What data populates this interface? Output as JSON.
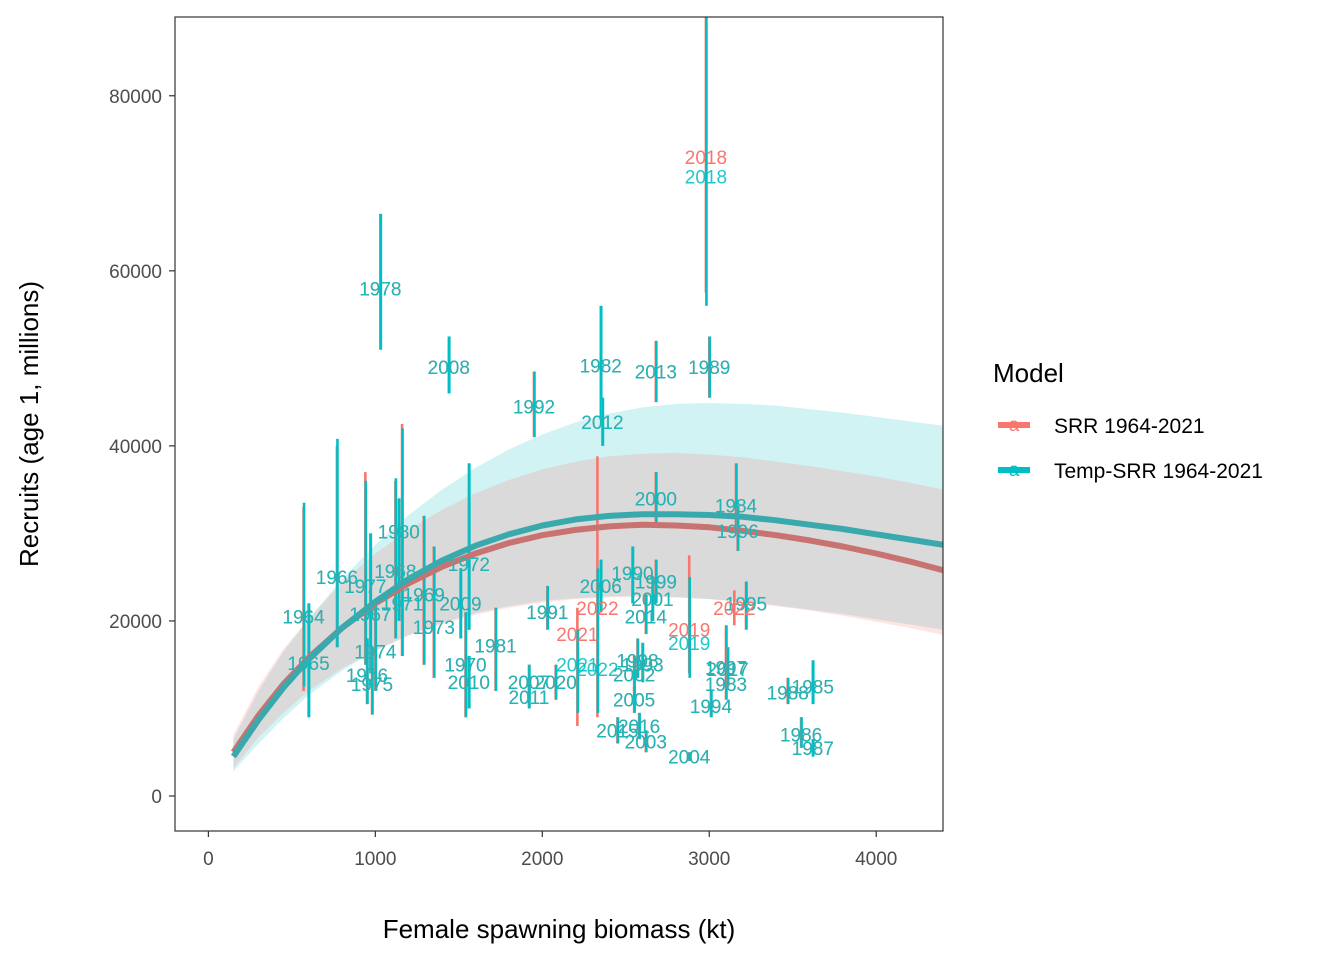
{
  "chart_data": {
    "type": "scatter",
    "title": "",
    "xlabel": "Female spawning biomass (kt)",
    "ylabel": "Recruits (age 1, millions)",
    "xlim": [
      -200,
      4400
    ],
    "ylim": [
      -4000,
      89000
    ],
    "x_ticks": [
      0,
      1000,
      2000,
      3000,
      4000
    ],
    "x_tick_labels": [
      "0",
      "1000",
      "2000",
      "3000",
      "4000"
    ],
    "y_ticks": [
      0,
      20000,
      40000,
      60000,
      80000
    ],
    "y_tick_labels": [
      "0",
      "20000",
      "40000",
      "60000",
      "80000"
    ],
    "grid": false,
    "legend": {
      "title": "Model",
      "placement": "right",
      "entries": [
        {
          "label": "SRR 1964-2021",
          "color": "#F8766D"
        },
        {
          "label": "Temp-SRR 1964-2021",
          "color": "#00BFC4"
        }
      ]
    },
    "colors": {
      "srr": "#F8766D",
      "temp": "#00BFC4",
      "srr_line": "#C87371",
      "temp_line": "#3AA9AD",
      "srr_band": "#F8766D",
      "temp_band": "#00BFC4"
    },
    "curves": {
      "x": [
        150,
        300,
        450,
        600,
        800,
        1000,
        1200,
        1400,
        1600,
        1800,
        2000,
        2200,
        2400,
        2600,
        2800,
        3000,
        3200,
        3400,
        3600,
        3800,
        4000,
        4200,
        4400
      ],
      "srr": {
        "name": "SRR 1964-2021",
        "fit": [
          5000,
          9200,
          12800,
          15800,
          19200,
          22000,
          24300,
          26200,
          27700,
          28900,
          29800,
          30400,
          30800,
          31000,
          30900,
          30700,
          30300,
          29800,
          29200,
          28500,
          27700,
          26800,
          25800
        ],
        "lower": [
          3200,
          6700,
          9500,
          12000,
          14600,
          16600,
          18300,
          19600,
          20700,
          21500,
          22100,
          22500,
          22700,
          22800,
          22700,
          22500,
          22200,
          21700,
          21200,
          20600,
          19900,
          19200,
          18400
        ],
        "upper": [
          7000,
          12500,
          16800,
          20200,
          24400,
          27700,
          30400,
          32700,
          34600,
          36100,
          37300,
          38200,
          38800,
          39100,
          39200,
          39000,
          38700,
          38200,
          37700,
          37100,
          36500,
          35800,
          35000
        ]
      },
      "temp": {
        "name": "Temp-SRR 1964-2021",
        "fit": [
          4500,
          8700,
          12400,
          15600,
          19200,
          22200,
          24800,
          26900,
          28600,
          29900,
          30900,
          31600,
          32000,
          32200,
          32200,
          32100,
          31900,
          31500,
          31000,
          30500,
          29900,
          29300,
          28700
        ],
        "lower": [
          2800,
          6000,
          8900,
          11500,
          14300,
          16600,
          18400,
          19800,
          20900,
          21700,
          22300,
          22600,
          22800,
          22800,
          22700,
          22500,
          22200,
          21800,
          21300,
          20800,
          20200,
          19600,
          19000
        ],
        "upper": [
          6500,
          12000,
          16500,
          20200,
          24800,
          28700,
          32100,
          35000,
          37500,
          39600,
          41300,
          42700,
          43700,
          44400,
          44800,
          44900,
          44800,
          44600,
          44200,
          43800,
          43300,
          42800,
          42300
        ]
      }
    },
    "points": [
      {
        "year": "1964",
        "x": 570,
        "y": 20500,
        "srr_lo": 12000,
        "srr_hi": 33000,
        "temp_lo": 12500,
        "temp_hi": 33500
      },
      {
        "year": "1965",
        "x": 600,
        "y": 15200,
        "srr_lo": 9000,
        "srr_hi": 22000,
        "temp_lo": 9000,
        "temp_hi": 22000
      },
      {
        "year": "1966",
        "x": 770,
        "y": 25000,
        "srr_lo": 17000,
        "srr_hi": 40000,
        "temp_lo": 17000,
        "temp_hi": 40800
      },
      {
        "year": "1967",
        "x": 970,
        "y": 20800,
        "srr_lo": 14000,
        "srr_hi": 30000,
        "temp_lo": 14000,
        "temp_hi": 30000
      },
      {
        "year": "1968",
        "x": 1120,
        "y": 25700,
        "srr_lo": 18000,
        "srr_hi": 36000,
        "temp_lo": 18000,
        "temp_hi": 36300
      },
      {
        "year": "1969",
        "x": 1290,
        "y": 23000,
        "srr_lo": 15000,
        "srr_hi": 32000,
        "temp_lo": 15000,
        "temp_hi": 32000
      },
      {
        "year": "1970",
        "x": 1540,
        "y": 15000,
        "srr_lo": 9000,
        "srr_hi": 21000,
        "temp_lo": 9000,
        "temp_hi": 21000
      },
      {
        "year": "1971",
        "x": 1160,
        "y": 22000,
        "srr_lo": 16000,
        "srr_hi": 42500,
        "temp_lo": 16000,
        "temp_hi": 42000
      },
      {
        "year": "1972",
        "x": 1560,
        "y": 26500,
        "srr_lo": 19000,
        "srr_hi": 38000,
        "temp_lo": 19000,
        "temp_hi": 38000
      },
      {
        "year": "1973",
        "x": 1350,
        "y": 19300,
        "srr_lo": 13500,
        "srr_hi": 28500,
        "temp_lo": 13500,
        "temp_hi": 28500
      },
      {
        "year": "1974",
        "x": 1000,
        "y": 16500,
        "srr_lo": 12000,
        "srr_hi": 22000,
        "temp_lo": 12000,
        "temp_hi": 22000
      },
      {
        "year": "1975",
        "x": 980,
        "y": 12800,
        "srr_lo": 9300,
        "srr_hi": 17000,
        "temp_lo": 9300,
        "temp_hi": 17000
      },
      {
        "year": "1976",
        "x": 950,
        "y": 13800,
        "srr_lo": 10500,
        "srr_hi": 18000,
        "temp_lo": 10500,
        "temp_hi": 18000
      },
      {
        "year": "1977",
        "x": 940,
        "y": 24000,
        "srr_lo": 15000,
        "srr_hi": 37000,
        "temp_lo": 15000,
        "temp_hi": 36000
      },
      {
        "year": "1978",
        "x": 1030,
        "y": 58000,
        "srr_lo": 51000,
        "srr_hi": 66500,
        "temp_lo": 51000,
        "temp_hi": 66500
      },
      {
        "year": "1980",
        "x": 1140,
        "y": 30200,
        "srr_lo": 20000,
        "srr_hi": 34000,
        "temp_lo": 20000,
        "temp_hi": 34000
      },
      {
        "year": "1981",
        "x": 1720,
        "y": 17200,
        "srr_lo": 12000,
        "srr_hi": 21500,
        "temp_lo": 12000,
        "temp_hi": 21500
      },
      {
        "year": "1982",
        "x": 2350,
        "y": 49200,
        "srr_lo": 43000,
        "srr_hi": 56000,
        "temp_lo": 43000,
        "temp_hi": 56000
      },
      {
        "year": "1983",
        "x": 3100,
        "y": 12800,
        "srr_lo": 11000,
        "srr_hi": 15000,
        "temp_lo": 11000,
        "temp_hi": 15000
      },
      {
        "year": "1984",
        "x": 3160,
        "y": 33200,
        "srr_lo": 30000,
        "srr_hi": 38000,
        "temp_lo": 30000,
        "temp_hi": 38000
      },
      {
        "year": "1985",
        "x": 3620,
        "y": 12500,
        "srr_lo": 10500,
        "srr_hi": 15500,
        "temp_lo": 10500,
        "temp_hi": 15500
      },
      {
        "year": "1986",
        "x": 3550,
        "y": 7000,
        "srr_lo": 5500,
        "srr_hi": 9000,
        "temp_lo": 5500,
        "temp_hi": 9000
      },
      {
        "year": "1987",
        "x": 3620,
        "y": 5500,
        "srr_lo": 4500,
        "srr_hi": 6500,
        "temp_lo": 4500,
        "temp_hi": 6500
      },
      {
        "year": "1988",
        "x": 3470,
        "y": 11800,
        "srr_lo": 10500,
        "srr_hi": 13500,
        "temp_lo": 10500,
        "temp_hi": 13500
      },
      {
        "year": "1989",
        "x": 3000,
        "y": 49000,
        "srr_lo": 45500,
        "srr_hi": 52500,
        "temp_lo": 45500,
        "temp_hi": 52500
      },
      {
        "year": "1990",
        "x": 2540,
        "y": 25500,
        "srr_lo": 22000,
        "srr_hi": 28500,
        "temp_lo": 22000,
        "temp_hi": 28500
      },
      {
        "year": "1991",
        "x": 2030,
        "y": 21000,
        "srr_lo": 19000,
        "srr_hi": 24000,
        "temp_lo": 19000,
        "temp_hi": 24000
      },
      {
        "year": "1992",
        "x": 1950,
        "y": 44500,
        "srr_lo": 41000,
        "srr_hi": 48500,
        "temp_lo": 41000,
        "temp_hi": 48500
      },
      {
        "year": "1993",
        "x": 2600,
        "y": 15000,
        "srr_lo": 13000,
        "srr_hi": 17500,
        "temp_lo": 13000,
        "temp_hi": 17500
      },
      {
        "year": "1994",
        "x": 3010,
        "y": 10300,
        "srr_lo": 9000,
        "srr_hi": 12000,
        "temp_lo": 9000,
        "temp_hi": 12000
      },
      {
        "year": "1995",
        "x": 3220,
        "y": 22000,
        "srr_lo": 19000,
        "srr_hi": 24500,
        "temp_lo": 19000,
        "temp_hi": 24500
      },
      {
        "year": "1996",
        "x": 3170,
        "y": 30300,
        "srr_lo": 28000,
        "srr_hi": 33000,
        "temp_lo": 28000,
        "temp_hi": 33000
      },
      {
        "year": "1997",
        "x": 3100,
        "y": 14700,
        "srr_lo": 12500,
        "srr_hi": 19500,
        "temp_lo": 12500,
        "temp_hi": 19500
      },
      {
        "year": "1998",
        "x": 2570,
        "y": 15500,
        "srr_lo": 13500,
        "srr_hi": 18000,
        "temp_lo": 13500,
        "temp_hi": 18000
      },
      {
        "year": "1999",
        "x": 2680,
        "y": 24500,
        "srr_lo": 22000,
        "srr_hi": 27000,
        "temp_lo": 22000,
        "temp_hi": 27000
      },
      {
        "year": "2000",
        "x": 2680,
        "y": 34000,
        "srr_lo": 31000,
        "srr_hi": 37000,
        "temp_lo": 31000,
        "temp_hi": 37000
      },
      {
        "year": "2001",
        "x": 2660,
        "y": 22500,
        "srr_lo": 20000,
        "srr_hi": 25000,
        "temp_lo": 20000,
        "temp_hi": 25000
      },
      {
        "year": "2002",
        "x": 2550,
        "y": 13900,
        "srr_lo": 12000,
        "srr_hi": 16000,
        "temp_lo": 12000,
        "temp_hi": 16000
      },
      {
        "year": "2003",
        "x": 2620,
        "y": 6200,
        "srr_lo": 5000,
        "srr_hi": 7500,
        "temp_lo": 5000,
        "temp_hi": 7500
      },
      {
        "year": "2004",
        "x": 2880,
        "y": 4500,
        "srr_lo": 4000,
        "srr_hi": 5000,
        "temp_lo": 4000,
        "temp_hi": 5000
      },
      {
        "year": "2005",
        "x": 2550,
        "y": 11000,
        "srr_lo": 9500,
        "srr_hi": 12500,
        "temp_lo": 9500,
        "temp_hi": 12500
      },
      {
        "year": "2006",
        "x": 2350,
        "y": 24000,
        "srr_lo": 21000,
        "srr_hi": 27000,
        "temp_lo": 21000,
        "temp_hi": 27000
      },
      {
        "year": "2007",
        "x": 1920,
        "y": 13000,
        "srr_lo": 11000,
        "srr_hi": 15000,
        "temp_lo": 11000,
        "temp_hi": 15000
      },
      {
        "year": "2008",
        "x": 1440,
        "y": 49000,
        "srr_lo": 46000,
        "srr_hi": 52500,
        "temp_lo": 46000,
        "temp_hi": 52500
      },
      {
        "year": "2009",
        "x": 1510,
        "y": 22000,
        "srr_lo": 18000,
        "srr_hi": 26000,
        "temp_lo": 18000,
        "temp_hi": 26000
      },
      {
        "year": "2010",
        "x": 1560,
        "y": 13000,
        "srr_lo": 10000,
        "srr_hi": 16000,
        "temp_lo": 10000,
        "temp_hi": 16000
      },
      {
        "year": "2011",
        "x": 1920,
        "y": 11300,
        "srr_lo": 10000,
        "srr_hi": 13000,
        "temp_lo": 10000,
        "temp_hi": 13000
      },
      {
        "year": "2012",
        "x": 2360,
        "y": 42700,
        "srr_lo": 40000,
        "srr_hi": 45500,
        "temp_lo": 40000,
        "temp_hi": 45500
      },
      {
        "year": "2013",
        "x": 2680,
        "y": 48500,
        "srr_lo": 45000,
        "srr_hi": 52000,
        "temp_lo": 45000,
        "temp_hi": 52000
      },
      {
        "year": "2014",
        "x": 2620,
        "y": 20500,
        "srr_lo": 18500,
        "srr_hi": 23000,
        "temp_lo": 18500,
        "temp_hi": 23000
      },
      {
        "year": "2015",
        "x": 2450,
        "y": 7500,
        "srr_lo": 6000,
        "srr_hi": 9000,
        "temp_lo": 6000,
        "temp_hi": 9000
      },
      {
        "year": "2016",
        "x": 2580,
        "y": 8000,
        "srr_lo": 6500,
        "srr_hi": 9500,
        "temp_lo": 6500,
        "temp_hi": 9500
      },
      {
        "year": "2017",
        "x": 3110,
        "y": 14500,
        "srr_lo": 12500,
        "srr_hi": 17000,
        "temp_lo": 12500,
        "temp_hi": 17000
      },
      {
        "year": "2018",
        "x": 2980,
        "srr_y": 73000,
        "temp_y": 70800,
        "srr_lo": 57500,
        "srr_hi": 89000,
        "temp_lo": 56000,
        "temp_hi": 89000
      },
      {
        "year": "2019",
        "x": 2880,
        "srr_y": 19000,
        "temp_y": 17500,
        "srr_lo": 14000,
        "srr_hi": 27500,
        "temp_lo": 13500,
        "temp_hi": 25000
      },
      {
        "year": "2020",
        "x": 2080,
        "y": 13000,
        "srr_lo": 11000,
        "srr_hi": 15000,
        "temp_lo": 11000,
        "temp_hi": 15000
      },
      {
        "year": "2021",
        "x": 2210,
        "srr_y": 18500,
        "temp_y": 15000,
        "srr_lo": 8000,
        "srr_hi": 21500,
        "temp_lo": 9500,
        "temp_hi": 19000
      },
      {
        "year": "2022",
        "x": 2330,
        "srr_y": 21500,
        "temp_y": 14500,
        "srr_lo": 9000,
        "srr_hi": 38800,
        "temp_lo": 9500,
        "temp_hi": 26000
      },
      {
        "year": "2022",
        "x": 3150,
        "srr_y": 21500,
        "srr_only": true,
        "srr_lo": 19500,
        "srr_hi": 23500
      }
    ]
  }
}
